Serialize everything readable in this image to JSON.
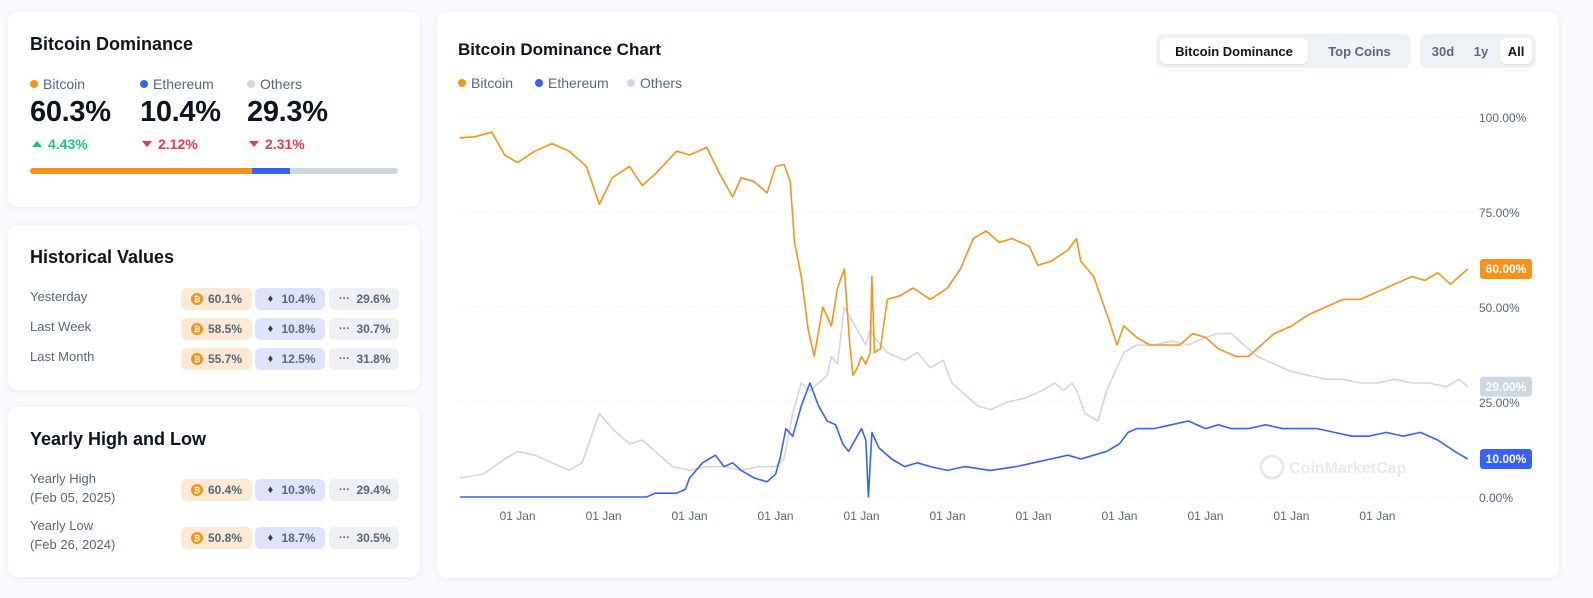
{
  "dominance": {
    "title": "Bitcoin Dominance",
    "items": [
      {
        "label": "Bitcoin",
        "value": "60.3%",
        "change": "4.43%",
        "direction": "up",
        "color": "#f7931a"
      },
      {
        "label": "Ethereum",
        "value": "10.4%",
        "change": "2.12%",
        "direction": "down",
        "color": "#3861fb"
      },
      {
        "label": "Others",
        "value": "29.3%",
        "change": "2.31%",
        "direction": "down",
        "color": "#cfd6e4"
      }
    ],
    "bar_fractions": [
      0.603,
      0.104,
      0.293
    ]
  },
  "historical": {
    "title": "Historical Values",
    "rows": [
      {
        "label": "Yesterday",
        "btc": "60.1%",
        "eth": "10.4%",
        "others": "29.6%"
      },
      {
        "label": "Last Week",
        "btc": "58.5%",
        "eth": "10.8%",
        "others": "30.7%"
      },
      {
        "label": "Last Month",
        "btc": "55.7%",
        "eth": "12.5%",
        "others": "31.8%"
      }
    ]
  },
  "yearly": {
    "title": "Yearly High and Low",
    "rows": [
      {
        "label": "Yearly High",
        "date": "(Feb 05, 2025)",
        "btc": "60.4%",
        "eth": "10.3%",
        "others": "29.4%"
      },
      {
        "label": "Yearly Low",
        "date": "(Feb 26, 2024)",
        "btc": "50.8%",
        "eth": "18.7%",
        "others": "30.5%"
      }
    ]
  },
  "chart": {
    "title": "Bitcoin Dominance Chart",
    "legend": [
      "Bitcoin",
      "Ethereum",
      "Others"
    ],
    "view_tabs": [
      {
        "label": "Bitcoin Dominance",
        "active": true
      },
      {
        "label": "Top Coins",
        "active": false
      }
    ],
    "range_tabs": [
      {
        "label": "30d",
        "active": false
      },
      {
        "label": "1y",
        "active": false
      },
      {
        "label": "All",
        "active": true
      }
    ],
    "watermark": "CoinMarketCap",
    "icons": {
      "eth": "ethereum-icon",
      "btc": "bitcoin-icon",
      "others": "ellipsis-icon"
    }
  },
  "chart_data": {
    "type": "line",
    "title": "Bitcoin Dominance Chart",
    "ylim": [
      0,
      100
    ],
    "y_ticks": [
      "0.00%",
      "25.00%",
      "50.00%",
      "75.00%",
      "100.00%"
    ],
    "y_tick_values": [
      0,
      25,
      50,
      75,
      100
    ],
    "x_ticks": [
      "01 Jan",
      "01 Jan",
      "01 Jan",
      "01 Jan",
      "01 Jan",
      "01 Jan",
      "01 Jan",
      "01 Jan",
      "01 Jan",
      "01 Jan",
      "01 Jan"
    ],
    "x_tick_values": [
      2014,
      2015,
      2016,
      2017,
      2018,
      2019,
      2020,
      2021,
      2022,
      2023,
      2024
    ],
    "xlim": [
      2013.33,
      2025.1
    ],
    "series": [
      {
        "name": "Bitcoin",
        "color": "#f7931a",
        "end_label": "60.00%",
        "points": [
          [
            2013.33,
            94.5
          ],
          [
            2013.5,
            94.8
          ],
          [
            2013.7,
            96
          ],
          [
            2013.85,
            90
          ],
          [
            2014.0,
            88
          ],
          [
            2014.2,
            91
          ],
          [
            2014.4,
            93
          ],
          [
            2014.6,
            91
          ],
          [
            2014.8,
            87
          ],
          [
            2014.95,
            77
          ],
          [
            2015.1,
            84
          ],
          [
            2015.3,
            87
          ],
          [
            2015.45,
            82
          ],
          [
            2015.6,
            85
          ],
          [
            2015.85,
            91
          ],
          [
            2016.0,
            90
          ],
          [
            2016.2,
            92
          ],
          [
            2016.35,
            85
          ],
          [
            2016.5,
            79
          ],
          [
            2016.6,
            84
          ],
          [
            2016.75,
            83
          ],
          [
            2016.9,
            80
          ],
          [
            2017.0,
            87
          ],
          [
            2017.1,
            87.5
          ],
          [
            2017.17,
            83
          ],
          [
            2017.22,
            67
          ],
          [
            2017.3,
            58
          ],
          [
            2017.38,
            44
          ],
          [
            2017.45,
            37
          ],
          [
            2017.55,
            50
          ],
          [
            2017.65,
            45
          ],
          [
            2017.72,
            55
          ],
          [
            2017.8,
            60
          ],
          [
            2017.86,
            41
          ],
          [
            2017.9,
            32
          ],
          [
            2017.95,
            34
          ],
          [
            2018.0,
            37
          ],
          [
            2018.05,
            35
          ],
          [
            2018.1,
            38
          ],
          [
            2018.12,
            58
          ],
          [
            2018.15,
            38
          ],
          [
            2018.22,
            39
          ],
          [
            2018.3,
            52
          ],
          [
            2018.45,
            53
          ],
          [
            2018.6,
            55
          ],
          [
            2018.8,
            52
          ],
          [
            2019.0,
            55
          ],
          [
            2019.15,
            60
          ],
          [
            2019.3,
            68
          ],
          [
            2019.45,
            70
          ],
          [
            2019.6,
            67
          ],
          [
            2019.75,
            68
          ],
          [
            2019.95,
            66
          ],
          [
            2020.05,
            61
          ],
          [
            2020.2,
            62
          ],
          [
            2020.4,
            65
          ],
          [
            2020.5,
            68
          ],
          [
            2020.55,
            62
          ],
          [
            2020.7,
            58
          ],
          [
            2020.9,
            45
          ],
          [
            2020.97,
            40
          ],
          [
            2021.05,
            45
          ],
          [
            2021.2,
            42
          ],
          [
            2021.35,
            40
          ],
          [
            2021.5,
            40
          ],
          [
            2021.7,
            40
          ],
          [
            2021.85,
            43
          ],
          [
            2022.0,
            42
          ],
          [
            2022.15,
            39
          ],
          [
            2022.35,
            37
          ],
          [
            2022.5,
            37
          ],
          [
            2022.65,
            40
          ],
          [
            2022.8,
            43
          ],
          [
            2023.0,
            45
          ],
          [
            2023.2,
            48
          ],
          [
            2023.4,
            50
          ],
          [
            2023.6,
            52
          ],
          [
            2023.8,
            52
          ],
          [
            2024.0,
            54
          ],
          [
            2024.2,
            56
          ],
          [
            2024.4,
            58
          ],
          [
            2024.55,
            57
          ],
          [
            2024.7,
            59
          ],
          [
            2024.85,
            56
          ],
          [
            2024.95,
            58
          ],
          [
            2025.05,
            60
          ]
        ]
      },
      {
        "name": "Ethereum",
        "color": "#3861fb",
        "end_label": "10.00%",
        "points": [
          [
            2013.33,
            0
          ],
          [
            2014.0,
            0
          ],
          [
            2015.0,
            0
          ],
          [
            2015.5,
            0
          ],
          [
            2015.6,
            1
          ],
          [
            2015.85,
            1
          ],
          [
            2015.95,
            2
          ],
          [
            2016.0,
            5
          ],
          [
            2016.15,
            9
          ],
          [
            2016.3,
            11
          ],
          [
            2016.4,
            8
          ],
          [
            2016.5,
            9
          ],
          [
            2016.6,
            7
          ],
          [
            2016.75,
            5
          ],
          [
            2016.9,
            4
          ],
          [
            2017.0,
            6
          ],
          [
            2017.05,
            10
          ],
          [
            2017.12,
            18
          ],
          [
            2017.2,
            16
          ],
          [
            2017.3,
            24
          ],
          [
            2017.4,
            30
          ],
          [
            2017.5,
            24
          ],
          [
            2017.6,
            20
          ],
          [
            2017.7,
            19
          ],
          [
            2017.78,
            14
          ],
          [
            2017.85,
            12
          ],
          [
            2018.0,
            18
          ],
          [
            2018.05,
            15
          ],
          [
            2018.08,
            0
          ],
          [
            2018.12,
            17
          ],
          [
            2018.2,
            13
          ],
          [
            2018.35,
            10
          ],
          [
            2018.5,
            8
          ],
          [
            2018.65,
            9
          ],
          [
            2018.8,
            8
          ],
          [
            2019.0,
            7
          ],
          [
            2019.2,
            8
          ],
          [
            2019.5,
            7
          ],
          [
            2019.8,
            8
          ],
          [
            2020.0,
            9
          ],
          [
            2020.2,
            10
          ],
          [
            2020.4,
            11
          ],
          [
            2020.55,
            10
          ],
          [
            2020.7,
            11
          ],
          [
            2020.85,
            12
          ],
          [
            2021.0,
            14
          ],
          [
            2021.1,
            17
          ],
          [
            2021.2,
            18
          ],
          [
            2021.4,
            18
          ],
          [
            2021.6,
            19
          ],
          [
            2021.8,
            20
          ],
          [
            2022.0,
            18
          ],
          [
            2022.15,
            19
          ],
          [
            2022.3,
            18
          ],
          [
            2022.5,
            18
          ],
          [
            2022.7,
            19
          ],
          [
            2022.9,
            18
          ],
          [
            2023.1,
            18
          ],
          [
            2023.3,
            18
          ],
          [
            2023.5,
            17
          ],
          [
            2023.7,
            16
          ],
          [
            2023.9,
            16
          ],
          [
            2024.1,
            17
          ],
          [
            2024.3,
            16
          ],
          [
            2024.5,
            17
          ],
          [
            2024.7,
            15
          ],
          [
            2024.9,
            12
          ],
          [
            2025.05,
            10
          ]
        ]
      },
      {
        "name": "Others",
        "color": "#cfd6e4",
        "end_label": "29.00%",
        "points": [
          [
            2013.33,
            5
          ],
          [
            2013.6,
            6
          ],
          [
            2013.85,
            10
          ],
          [
            2014.0,
            12
          ],
          [
            2014.2,
            11
          ],
          [
            2014.4,
            9
          ],
          [
            2014.6,
            7
          ],
          [
            2014.75,
            9
          ],
          [
            2014.95,
            22
          ],
          [
            2015.1,
            18
          ],
          [
            2015.3,
            14
          ],
          [
            2015.45,
            15
          ],
          [
            2015.6,
            12
          ],
          [
            2015.8,
            8
          ],
          [
            2016.0,
            7
          ],
          [
            2016.2,
            8
          ],
          [
            2016.4,
            8
          ],
          [
            2016.6,
            7
          ],
          [
            2016.8,
            8
          ],
          [
            2017.0,
            8
          ],
          [
            2017.1,
            10
          ],
          [
            2017.2,
            22
          ],
          [
            2017.3,
            30
          ],
          [
            2017.4,
            28
          ],
          [
            2017.5,
            30
          ],
          [
            2017.6,
            32
          ],
          [
            2017.65,
            37
          ],
          [
            2017.72,
            35
          ],
          [
            2017.8,
            50
          ],
          [
            2017.9,
            46
          ],
          [
            2018.0,
            42
          ],
          [
            2018.05,
            40
          ],
          [
            2018.1,
            44
          ],
          [
            2018.15,
            42
          ],
          [
            2018.3,
            38
          ],
          [
            2018.5,
            36
          ],
          [
            2018.65,
            38
          ],
          [
            2018.8,
            34
          ],
          [
            2018.95,
            36
          ],
          [
            2019.05,
            30
          ],
          [
            2019.2,
            27
          ],
          [
            2019.35,
            24
          ],
          [
            2019.5,
            23
          ],
          [
            2019.7,
            25
          ],
          [
            2019.9,
            26
          ],
          [
            2020.1,
            28
          ],
          [
            2020.25,
            30
          ],
          [
            2020.35,
            28
          ],
          [
            2020.45,
            30
          ],
          [
            2020.5,
            28
          ],
          [
            2020.6,
            22
          ],
          [
            2020.75,
            20
          ],
          [
            2020.85,
            28
          ],
          [
            2020.95,
            33
          ],
          [
            2021.05,
            38
          ],
          [
            2021.2,
            40
          ],
          [
            2021.4,
            40
          ],
          [
            2021.6,
            41
          ],
          [
            2021.8,
            40
          ],
          [
            2022.0,
            42
          ],
          [
            2022.15,
            43
          ],
          [
            2022.3,
            43
          ],
          [
            2022.45,
            40
          ],
          [
            2022.6,
            37
          ],
          [
            2022.8,
            35
          ],
          [
            2023.0,
            33
          ],
          [
            2023.2,
            32
          ],
          [
            2023.4,
            31
          ],
          [
            2023.6,
            31
          ],
          [
            2023.8,
            30
          ],
          [
            2024.0,
            30
          ],
          [
            2024.2,
            31
          ],
          [
            2024.4,
            30
          ],
          [
            2024.6,
            30
          ],
          [
            2024.8,
            29
          ],
          [
            2024.95,
            31
          ],
          [
            2025.05,
            29
          ]
        ]
      }
    ]
  }
}
